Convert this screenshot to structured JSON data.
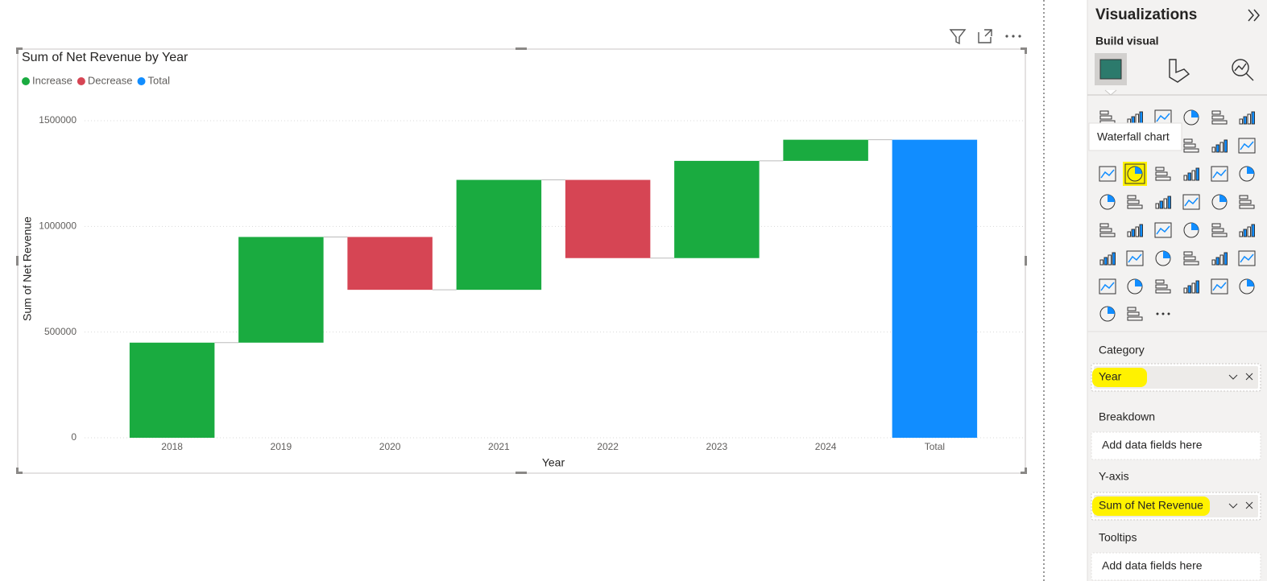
{
  "chart_data": {
    "type": "waterfall",
    "title": "Sum of Net Revenue by Year",
    "x_label": "Year",
    "y_label": "Sum of Net Revenue",
    "categories": [
      "2018",
      "2019",
      "2020",
      "2021",
      "2022",
      "2023",
      "2024",
      "Total"
    ],
    "values": [
      450000,
      500000,
      -250000,
      520000,
      -370000,
      460000,
      100000,
      1410000
    ],
    "legend": [
      {
        "name": "Increase",
        "color": "#1aab40"
      },
      {
        "name": "Decrease",
        "color": "#d64554"
      },
      {
        "name": "Total",
        "color": "#118dff"
      }
    ],
    "show_total": true,
    "ylim": [
      0,
      1550000
    ],
    "yticks": [
      0,
      500000,
      1000000,
      1500000
    ],
    "grid": true
  },
  "panel": {
    "title": "Visualizations",
    "subtitle": "Build visual",
    "tooltip": "Waterfall chart",
    "wells": [
      {
        "label": "Category",
        "field": "Year"
      },
      {
        "label": "Breakdown",
        "field": "Add data fields here"
      },
      {
        "label": "Y-axis",
        "field": "Sum of Net Revenue"
      },
      {
        "label": "Tooltips",
        "field": "Add data fields here"
      }
    ]
  }
}
